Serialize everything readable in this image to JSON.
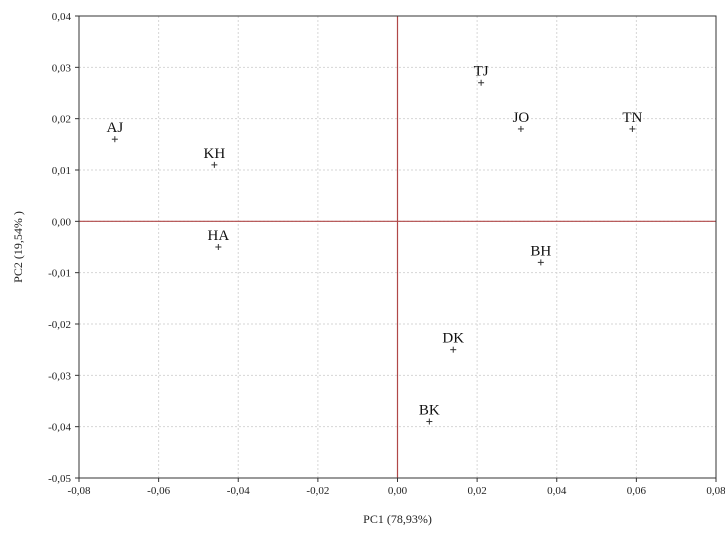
{
  "chart_data": {
    "type": "scatter",
    "title": "",
    "xlabel": "PC1 (78,93%)",
    "ylabel": "PC2 (19,54% )",
    "xlim": [
      -0.08,
      0.08
    ],
    "ylim": [
      -0.05,
      0.04
    ],
    "grid": true,
    "x_ticks": [
      "-0,08",
      "-0,06",
      "-0,04",
      "-0,02",
      "0,00",
      "0,02",
      "0,04",
      "0,06",
      "0,08"
    ],
    "y_ticks": [
      "0,04",
      "0,03",
      "0,02",
      "0,01",
      "0,00",
      "-0,01",
      "-0,02",
      "-0,03",
      "-0,04",
      "-0,05"
    ],
    "reference_lines": {
      "x": 0,
      "y": 0,
      "color": "#b04848"
    },
    "points": [
      {
        "label": "AJ",
        "x": -0.071,
        "y": 0.016
      },
      {
        "label": "KH",
        "x": -0.046,
        "y": 0.011
      },
      {
        "label": "HA",
        "x": -0.045,
        "y": -0.005
      },
      {
        "label": "TJ",
        "x": 0.021,
        "y": 0.027
      },
      {
        "label": "JO",
        "x": 0.031,
        "y": 0.018
      },
      {
        "label": "TN",
        "x": 0.059,
        "y": 0.018
      },
      {
        "label": "BH",
        "x": 0.036,
        "y": -0.008
      },
      {
        "label": "DK",
        "x": 0.014,
        "y": -0.025
      },
      {
        "label": "BK",
        "x": 0.008,
        "y": -0.039
      }
    ]
  }
}
